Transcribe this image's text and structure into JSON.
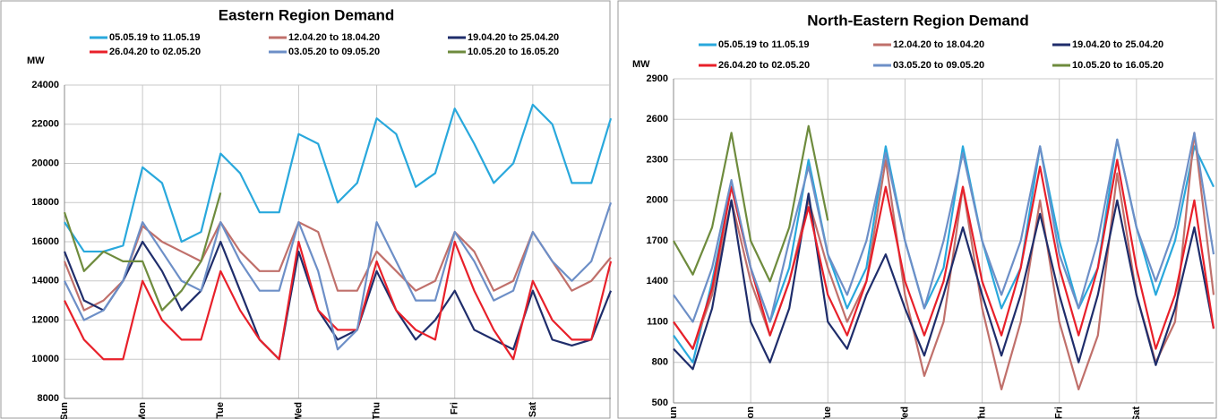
{
  "chart_data": [
    {
      "type": "line",
      "title": "Eastern Region Demand",
      "y_label": "MW",
      "x": [
        0,
        0.25,
        0.5,
        0.75,
        1,
        1.25,
        1.5,
        1.75,
        2,
        2.25,
        2.5,
        2.75,
        3,
        3.25,
        3.5,
        3.75,
        4,
        4.25,
        4.5,
        4.75,
        5,
        5.25,
        5.5,
        5.75,
        6,
        6.25,
        6.5,
        6.75,
        7
      ],
      "xlim": [
        0,
        7
      ],
      "xticks": [
        {
          "value": 0,
          "label": "Sun"
        },
        {
          "value": 1,
          "label": "Mon"
        },
        {
          "value": 2,
          "label": "Tue"
        },
        {
          "value": 3,
          "label": "Wed"
        },
        {
          "value": 4,
          "label": "Thu"
        },
        {
          "value": 5,
          "label": "Fri"
        },
        {
          "value": 6,
          "label": "Sat"
        }
      ],
      "ylim": [
        8000,
        24000
      ],
      "yticks": [
        8000,
        10000,
        12000,
        14000,
        16000,
        18000,
        20000,
        22000,
        24000
      ],
      "grid": true,
      "series": [
        {
          "name": "05.05.19 to 11.05.19",
          "color": "#29a8dc",
          "values": [
            17000,
            15500,
            15500,
            15800,
            19800,
            19000,
            16000,
            16500,
            20500,
            19500,
            17500,
            17500,
            21500,
            21000,
            18000,
            19000,
            22300,
            21500,
            18800,
            19500,
            22800,
            21000,
            19000,
            20000,
            23000,
            22000,
            19000,
            19000,
            22300
          ]
        },
        {
          "name": "12.04.20 to 18.04.20",
          "color": "#c0706b",
          "values": [
            15000,
            12500,
            13000,
            14000,
            16800,
            16000,
            15500,
            15000,
            17000,
            15500,
            14500,
            14500,
            17000,
            16500,
            13500,
            13500,
            15500,
            14500,
            13500,
            14000,
            16500,
            15500,
            13500,
            14000,
            16500,
            15000,
            13500,
            14000,
            15200
          ]
        },
        {
          "name": "19.04.20 to 25.04.20",
          "color": "#1f2d6b",
          "values": [
            15500,
            13000,
            12500,
            14000,
            16000,
            14500,
            12500,
            13500,
            16000,
            13500,
            11000,
            10000,
            15500,
            12500,
            11000,
            11500,
            14500,
            12500,
            11000,
            12000,
            13500,
            11500,
            11000,
            10500,
            13500,
            11000,
            10700,
            11000,
            13500
          ]
        },
        {
          "name": "26.04.20 to 02.05.20",
          "color": "#e8202a",
          "values": [
            13000,
            11000,
            10000,
            10000,
            14000,
            12000,
            11000,
            11000,
            14500,
            12500,
            11000,
            10000,
            16000,
            12500,
            11500,
            11500,
            15000,
            12500,
            11500,
            11000,
            16000,
            13500,
            11500,
            10000,
            14000,
            12000,
            11000,
            11000,
            15000
          ]
        },
        {
          "name": "03.05.20 to 09.05.20",
          "color": "#6d8fc7",
          "values": [
            14000,
            12000,
            12500,
            14000,
            17000,
            15500,
            14000,
            13500,
            17000,
            15000,
            13500,
            13500,
            17000,
            14500,
            10500,
            11500,
            17000,
            15000,
            13000,
            13000,
            16500,
            15000,
            13000,
            13500,
            16500,
            15000,
            14000,
            15000,
            18000
          ]
        },
        {
          "name": "10.05.20 to 16.05.20",
          "color": "#6e8b3d",
          "values": [
            17500,
            14500,
            15500,
            15000,
            15000,
            12500,
            13500,
            15000,
            18500,
            null,
            null,
            null,
            null,
            null,
            null,
            null,
            null,
            null,
            null,
            null,
            null,
            null,
            null,
            null,
            null,
            null,
            null,
            null,
            null
          ]
        }
      ]
    },
    {
      "type": "line",
      "title": "North-Eastern Region Demand",
      "y_label": "MW",
      "x": [
        0,
        0.25,
        0.5,
        0.75,
        1,
        1.25,
        1.5,
        1.75,
        2,
        2.25,
        2.5,
        2.75,
        3,
        3.25,
        3.5,
        3.75,
        4,
        4.25,
        4.5,
        4.75,
        5,
        5.25,
        5.5,
        5.75,
        6,
        6.25,
        6.5,
        6.75,
        7
      ],
      "xlim": [
        0,
        7
      ],
      "xticks": [
        {
          "value": 0,
          "label": "Sun"
        },
        {
          "value": 1,
          "label": "Mon"
        },
        {
          "value": 2,
          "label": "Tue"
        },
        {
          "value": 3,
          "label": "Wed"
        },
        {
          "value": 4,
          "label": "Thu"
        },
        {
          "value": 5,
          "label": "Fri"
        },
        {
          "value": 6,
          "label": "Sat"
        }
      ],
      "ylim": [
        500,
        2900
      ],
      "yticks": [
        500,
        800,
        1100,
        1400,
        1700,
        2000,
        2300,
        2600,
        2900
      ],
      "grid": true,
      "series": [
        {
          "name": "05.05.19 to 11.05.19",
          "color": "#29a8dc",
          "values": [
            1000,
            800,
            1400,
            2100,
            1500,
            1100,
            1500,
            2300,
            1600,
            1200,
            1500,
            2400,
            1700,
            1200,
            1500,
            2400,
            1700,
            1200,
            1500,
            2400,
            1700,
            1200,
            1500,
            2450,
            1800,
            1300,
            1700,
            2400,
            2100
          ]
        },
        {
          "name": "12.04.20 to 18.04.20",
          "color": "#c0706b",
          "values": [
            1100,
            900,
            1300,
            2000,
            1400,
            1000,
            1400,
            2000,
            1500,
            1100,
            1400,
            2300,
            1300,
            700,
            1100,
            2100,
            1200,
            600,
            1100,
            2000,
            1100,
            600,
            1000,
            2200,
            1300,
            800,
            1100,
            2500,
            1300
          ]
        },
        {
          "name": "19.04.20 to 25.04.20",
          "color": "#1f2d6b",
          "values": [
            900,
            750,
            1200,
            2000,
            1100,
            800,
            1200,
            2050,
            1100,
            900,
            1300,
            1600,
            1200,
            850,
            1300,
            1800,
            1300,
            850,
            1300,
            1900,
            1300,
            800,
            1300,
            2000,
            1300,
            780,
            1200,
            1800,
            1050
          ]
        },
        {
          "name": "26.04.20 to 02.05.20",
          "color": "#e8202a",
          "values": [
            1100,
            900,
            1350,
            2100,
            1500,
            1000,
            1400,
            1950,
            1300,
            1000,
            1400,
            2100,
            1400,
            1000,
            1400,
            2100,
            1400,
            1000,
            1500,
            2250,
            1500,
            1000,
            1500,
            2300,
            1500,
            900,
            1300,
            2000,
            1050
          ]
        },
        {
          "name": "03.05.20 to 09.05.20",
          "color": "#6d8fc7",
          "values": [
            1300,
            1100,
            1500,
            2150,
            1500,
            1100,
            1700,
            2250,
            1600,
            1300,
            1700,
            2350,
            1700,
            1200,
            1700,
            2350,
            1700,
            1300,
            1700,
            2400,
            1600,
            1200,
            1700,
            2450,
            1800,
            1400,
            1800,
            2500,
            1600
          ]
        },
        {
          "name": "10.05.20 to 16.05.20",
          "color": "#6e8b3d",
          "values": [
            1700,
            1450,
            1800,
            2500,
            1700,
            1400,
            1800,
            2550,
            1850,
            null,
            null,
            null,
            null,
            null,
            null,
            null,
            null,
            null,
            null,
            null,
            null,
            null,
            null,
            null,
            null,
            null,
            null,
            null,
            null
          ]
        }
      ]
    }
  ]
}
